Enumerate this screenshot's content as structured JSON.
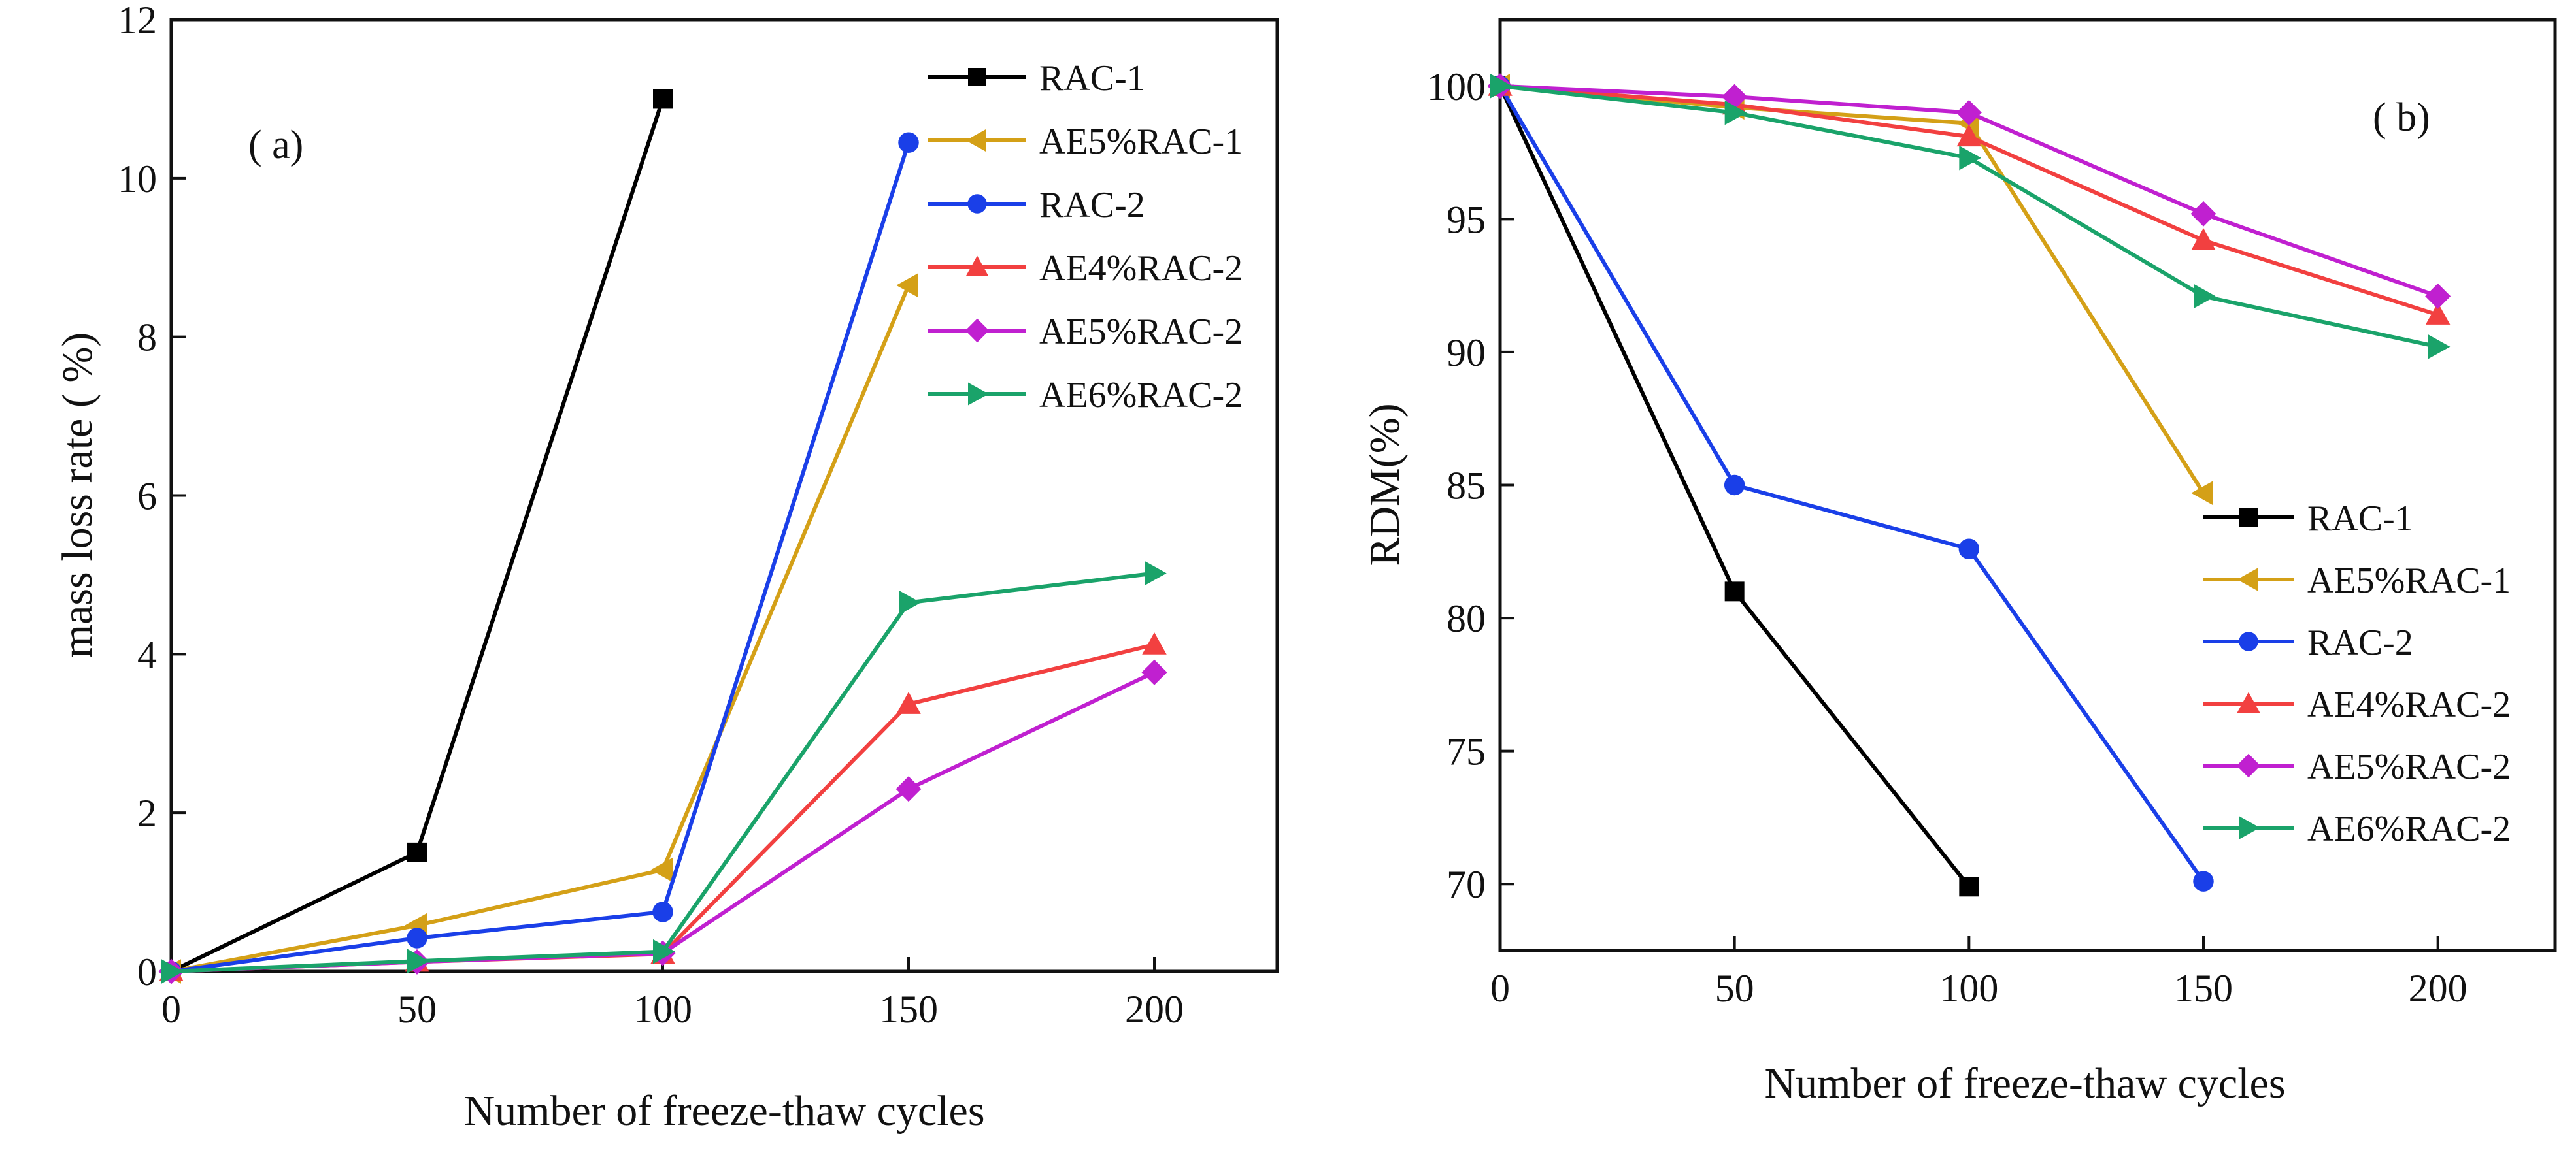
{
  "chart_data": [
    {
      "panel": "a",
      "panel_label": "( a)",
      "type": "line",
      "xlabel": "Number of freeze-thaw cycles",
      "ylabel": "mass loss rate ( %)",
      "xlim": [
        0,
        225
      ],
      "ylim": [
        0,
        12
      ],
      "xticks": [
        0,
        50,
        100,
        150,
        200
      ],
      "yticks": [
        0,
        2,
        4,
        6,
        8,
        10,
        12
      ],
      "legend_position": "top-right",
      "series": [
        {
          "name": "RAC-1",
          "color": "#000000",
          "marker": "square",
          "x": [
            0,
            50,
            100
          ],
          "y": [
            0,
            1.5,
            11.0
          ]
        },
        {
          "name": "AE5%RAC-1",
          "color": "#D4A017",
          "marker": "triangle-left",
          "x": [
            0,
            50,
            100,
            150
          ],
          "y": [
            0,
            0.58,
            1.28,
            8.65
          ]
        },
        {
          "name": "RAC-2",
          "color": "#1A3FE8",
          "marker": "circle",
          "x": [
            0,
            50,
            100,
            150
          ],
          "y": [
            0,
            0.42,
            0.75,
            10.45
          ]
        },
        {
          "name": "AE4%RAC-2",
          "color": "#F24040",
          "marker": "triangle-up",
          "x": [
            0,
            50,
            100,
            150,
            200
          ],
          "y": [
            0,
            0.12,
            0.22,
            3.37,
            4.12
          ]
        },
        {
          "name": "AE5%RAC-2",
          "color": "#C020D0",
          "marker": "diamond",
          "x": [
            0,
            50,
            100,
            150,
            200
          ],
          "y": [
            0,
            0.12,
            0.23,
            2.3,
            3.77
          ]
        },
        {
          "name": "AE6%RAC-2",
          "color": "#1AA36A",
          "marker": "triangle-right",
          "x": [
            0,
            50,
            100,
            150,
            200
          ],
          "y": [
            0,
            0.13,
            0.25,
            4.65,
            5.02
          ]
        }
      ]
    },
    {
      "panel": "b",
      "panel_label": "( b)",
      "type": "line",
      "xlabel": "Number of freeze-thaw cycles",
      "ylabel": "RDM(%)",
      "xlim": [
        0,
        225
      ],
      "ylim": [
        67.5,
        102.5
      ],
      "xticks": [
        0,
        50,
        100,
        150,
        200
      ],
      "yticks": [
        70,
        75,
        80,
        85,
        90,
        95,
        100
      ],
      "legend_position": "bottom-right",
      "series": [
        {
          "name": "RAC-1",
          "color": "#000000",
          "marker": "square",
          "x": [
            0,
            50,
            100
          ],
          "y": [
            100,
            81.0,
            69.9
          ]
        },
        {
          "name": "AE5%RAC-1",
          "color": "#D4A017",
          "marker": "triangle-left",
          "x": [
            0,
            50,
            100,
            150
          ],
          "y": [
            100,
            99.2,
            98.6,
            84.7
          ]
        },
        {
          "name": "RAC-2",
          "color": "#1A3FE8",
          "marker": "circle",
          "x": [
            0,
            50,
            100,
            150
          ],
          "y": [
            100,
            85.0,
            82.6,
            70.1
          ]
        },
        {
          "name": "AE4%RAC-2",
          "color": "#F24040",
          "marker": "triangle-up",
          "x": [
            0,
            50,
            100,
            150,
            200
          ],
          "y": [
            100,
            99.3,
            98.1,
            94.2,
            91.4
          ]
        },
        {
          "name": "AE5%RAC-2",
          "color": "#C020D0",
          "marker": "diamond",
          "x": [
            0,
            50,
            100,
            150,
            200
          ],
          "y": [
            100,
            99.6,
            99.0,
            95.2,
            92.1
          ]
        },
        {
          "name": "AE6%RAC-2",
          "color": "#1AA36A",
          "marker": "triangle-right",
          "x": [
            0,
            50,
            100,
            150,
            200
          ],
          "y": [
            100,
            99.0,
            97.3,
            92.1,
            90.2
          ]
        }
      ]
    }
  ]
}
